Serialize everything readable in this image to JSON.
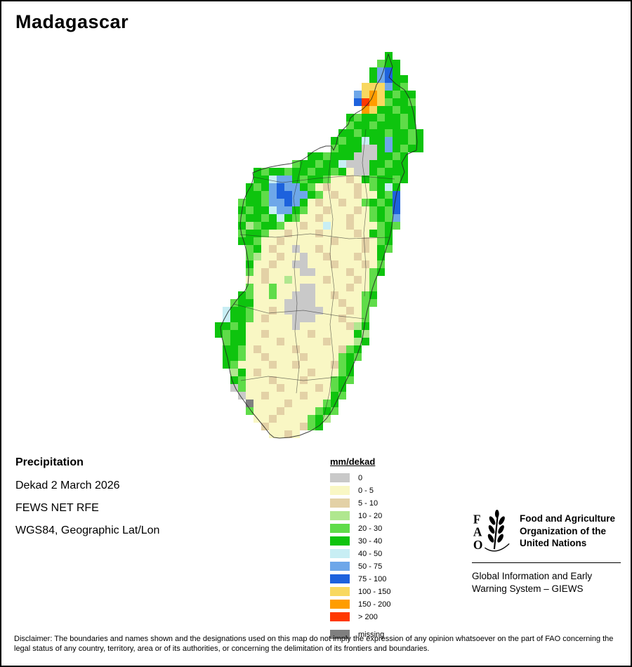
{
  "title": "Madagascar",
  "info": {
    "heading": "Precipitation",
    "lines": [
      "Dekad 2 March 2026",
      "FEWS NET RFE",
      "WGS84, Geographic Lat/Lon"
    ]
  },
  "legend": {
    "title": "mm/dekad",
    "items": [
      {
        "key": "A",
        "label": "0",
        "color": "#c9c9c9"
      },
      {
        "key": "B",
        "label": "0 - 5",
        "color": "#f9f7c4"
      },
      {
        "key": "C",
        "label": "5 - 10",
        "color": "#e3d1a6"
      },
      {
        "key": "D",
        "label": "10 - 20",
        "color": "#b0e78f"
      },
      {
        "key": "E",
        "label": "20 - 30",
        "color": "#5fdc49"
      },
      {
        "key": "F",
        "label": "30 - 40",
        "color": "#0ec40e"
      },
      {
        "key": "G",
        "label": "40 - 50",
        "color": "#c8eef4"
      },
      {
        "key": "H",
        "label": "50 - 75",
        "color": "#6ea7e9"
      },
      {
        "key": "I",
        "label": "75 - 100",
        "color": "#1d62dd"
      },
      {
        "key": "J",
        "label": "100 - 150",
        "color": "#f8d860"
      },
      {
        "key": "K",
        "label": "150 - 200",
        "color": "#ff9d00"
      },
      {
        "key": "L",
        "label": "> 200",
        "color": "#ff3800"
      },
      {
        "key": "M",
        "label": "missing",
        "color": "#7f7f7f",
        "gap": true
      }
    ]
  },
  "map": {
    "region": "Madagascar",
    "raster": [
      "......................F....",
      ".....................EFF...",
      "....................FHIF...",
      "....................FHIFF..",
      "...................JJJHFE..",
      "..................HJKJFEFF.",
      "..................ILKJEFFE.",
      "...................KJFFEFF.",
      ".................FEFFEFFEF.",
      ".................EFFEFFFEF.",
      "................FFEFFFEFFEF",
      "...............FEFFGFFHFFEF",
      "...............EFFFAAFHFEFF",
      "............FFEFFFAAAFFEF..",
      "..........EFFEFFGAAAFFEFF..",
      ".....FEFFEFFEFFEFBAAFEFFF..",
      ".....FFGHHFEFFEBBCBFEFFEF..",
      "....FEFHIHHFEBCBBBCBEFGF...",
      "....FFEHIIHHFEBCBBCBBFEI...",
      "...EFFEHHIHFBCBBCBBEFEFI...",
      "...FEFFGHHFEBBCBBBCBEFEI...",
      "...EFFEFGFEBBCBBBCBBEFEH...",
      "...FDEFFEBBCBBGBBCBBBEFE...",
      "...EFFEBBCBBBCBBBBCBFEF....",
      "...FFEBBCBBBBBBCBBBCBEF....",
      "....EFBCBBABBCBBBBBCBFE....",
      "....EDBBCBBABBCBBBCBBF.....",
      "....FBBCBBAABBBCBBBCBE.....",
      "....EBCBBBBAABBBBCBBEF.....",
      "....BBCBBDBBBBCBBBCBE......",
      "....EBBEBBBAABBBBCBBE......",
      "...FEBBEBBAAABBCBBBEF......",
      "..EFFBBBBAAAABBBCBBEE......",
      ".GFFEBBCBAAAAABBBCBE.......",
      ".GFFEBCBBBAAABBBCBBE.......",
      "FFEFBBBBBBABBBBBBCDF.......",
      "FEFFBBCBBBBBCBBBBBFD.......",
      ".EFFBBBBCBBBBBCBBBDF.......",
      ".FFEBCBBBBCBBBBBCEF........",
      ".FFEBBCBBBBCBBBBEFE........",
      ".FEBBBBCBBCBBBBCEF.........",
      "..DFBCBBBBBBCBBBEF.........",
      "..FEBBBCBBBCBBBEFE.........",
      "..AEBBBBCBBBBCBEF..........",
      "...ABBCBBBBCBBBFE..........",
      "....MBBBBCBBBBEF...........",
      "....EBBBCBBBBEFE...........",
      ".....BBCBBBBEFD............",
      "......CBBBBCEF.............",
      ".......BBCB................"
    ]
  },
  "org": {
    "name_lines": [
      "Food and Agriculture",
      "Organization of the",
      "United Nations"
    ],
    "sub_lines": [
      "Global Information and Early",
      "Warning System – GIEWS"
    ]
  },
  "disclaimer": "Disclaimer: The boundaries and names shown and the designations used on this map do not imply the expression of any opinion whatsoever on the part of FAO concerning the legal status of any country, territory, area or of its authorities, or concerning the delimitation of its frontiers and boundaries."
}
